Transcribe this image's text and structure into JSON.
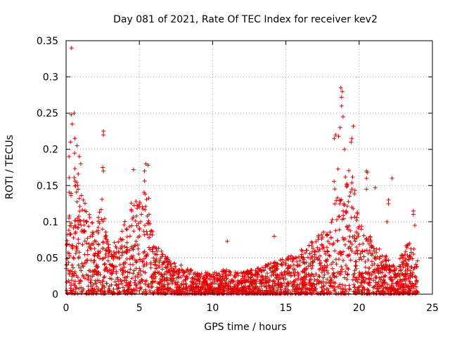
{
  "chart_data": {
    "type": "scatter",
    "title": "Day 081 of 2021, Rate Of TEC Index for receiver kev2",
    "xlabel": "GPS time / hours",
    "ylabel": "ROTI / TECUs",
    "xlim": [
      0,
      25
    ],
    "ylim": [
      0,
      0.35
    ],
    "x_ticks": [
      0,
      5,
      10,
      15,
      20,
      25
    ],
    "y_ticks": [
      0,
      0.05,
      0.1,
      0.15,
      0.2,
      0.25,
      0.3,
      0.35
    ],
    "x_tick_labels": [
      "0",
      "5",
      "10",
      "15",
      "20",
      "25"
    ],
    "y_tick_labels": [
      "0",
      "0.05",
      "0.1",
      "0.15",
      "0.2",
      "0.25",
      "0.3",
      "0.35"
    ],
    "grid": true,
    "marker": "+",
    "color": "#e00000",
    "series": [
      {
        "name": "ROTI",
        "envelope": [
          [
            0.0,
            0.12
          ],
          [
            0.3,
            0.2
          ],
          [
            0.6,
            0.2
          ],
          [
            1.0,
            0.14
          ],
          [
            1.5,
            0.12
          ],
          [
            2.0,
            0.09
          ],
          [
            2.5,
            0.14
          ],
          [
            3.0,
            0.06
          ],
          [
            3.5,
            0.08
          ],
          [
            4.0,
            0.1
          ],
          [
            4.5,
            0.13
          ],
          [
            5.0,
            0.13
          ],
          [
            5.5,
            0.17
          ],
          [
            6.0,
            0.07
          ],
          [
            6.5,
            0.06
          ],
          [
            7.0,
            0.05
          ],
          [
            7.5,
            0.045
          ],
          [
            8.0,
            0.04
          ],
          [
            9.0,
            0.03
          ],
          [
            10.0,
            0.03
          ],
          [
            11.0,
            0.035
          ],
          [
            12.0,
            0.03
          ],
          [
            13.0,
            0.035
          ],
          [
            14.0,
            0.045
          ],
          [
            15.0,
            0.05
          ],
          [
            16.0,
            0.06
          ],
          [
            17.0,
            0.08
          ],
          [
            18.0,
            0.09
          ],
          [
            18.3,
            0.16
          ],
          [
            18.7,
            0.2
          ],
          [
            19.0,
            0.16
          ],
          [
            19.5,
            0.18
          ],
          [
            20.0,
            0.1
          ],
          [
            20.5,
            0.09
          ],
          [
            21.0,
            0.07
          ],
          [
            21.5,
            0.06
          ],
          [
            22.0,
            0.05
          ],
          [
            22.5,
            0.04
          ],
          [
            23.0,
            0.06
          ],
          [
            23.5,
            0.08
          ],
          [
            24.0,
            0.05
          ]
        ],
        "outliers": [
          [
            0.37,
            0.34
          ],
          [
            0.35,
            0.248
          ],
          [
            0.55,
            0.25
          ],
          [
            0.42,
            0.235
          ],
          [
            0.6,
            0.215
          ],
          [
            0.3,
            0.21
          ],
          [
            0.75,
            0.205
          ],
          [
            0.2,
            0.19
          ],
          [
            0.9,
            0.19
          ],
          [
            1.0,
            0.18
          ],
          [
            2.55,
            0.225
          ],
          [
            2.55,
            0.22
          ],
          [
            2.5,
            0.175
          ],
          [
            2.55,
            0.17
          ],
          [
            4.6,
            0.172
          ],
          [
            5.45,
            0.18
          ],
          [
            5.6,
            0.178
          ],
          [
            5.35,
            0.17
          ],
          [
            11.0,
            0.073
          ],
          [
            14.2,
            0.08
          ],
          [
            18.75,
            0.285
          ],
          [
            18.85,
            0.28
          ],
          [
            18.8,
            0.272
          ],
          [
            18.8,
            0.26
          ],
          [
            18.7,
            0.23
          ],
          [
            18.4,
            0.22
          ],
          [
            18.3,
            0.215
          ],
          [
            18.6,
            0.218
          ],
          [
            19.6,
            0.232
          ],
          [
            19.5,
            0.215
          ],
          [
            19.45,
            0.21
          ],
          [
            19.0,
            0.2
          ],
          [
            20.5,
            0.17
          ],
          [
            20.55,
            0.168
          ],
          [
            20.5,
            0.16
          ],
          [
            22.25,
            0.16
          ],
          [
            22.0,
            0.13
          ],
          [
            22.0,
            0.125
          ],
          [
            21.1,
            0.147
          ],
          [
            20.5,
            0.145
          ],
          [
            23.7,
            0.115
          ],
          [
            23.7,
            0.11
          ],
          [
            21.9,
            0.1
          ],
          [
            23.8,
            0.095
          ],
          [
            18.9,
            0.245
          ]
        ]
      }
    ]
  }
}
